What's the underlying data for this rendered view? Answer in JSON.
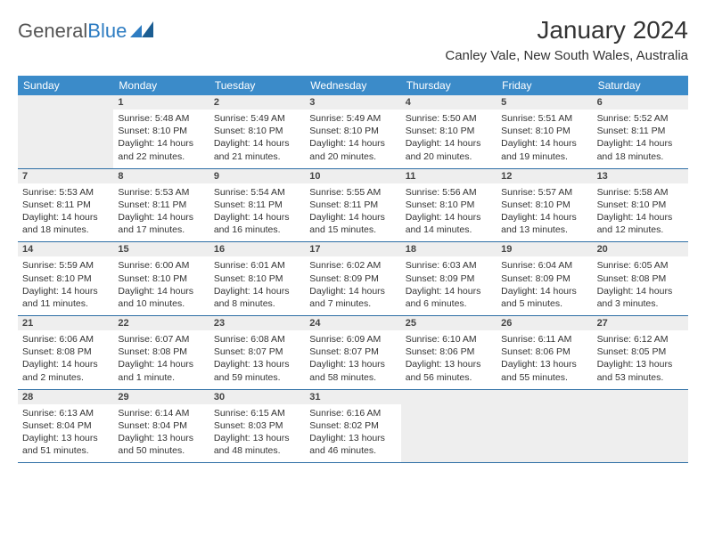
{
  "logo": {
    "part1": "General",
    "part2": "Blue"
  },
  "title": "January 2024",
  "location": "Canley Vale, New South Wales, Australia",
  "daynames": [
    "Sunday",
    "Monday",
    "Tuesday",
    "Wednesday",
    "Thursday",
    "Friday",
    "Saturday"
  ],
  "colors": {
    "header_bg": "#3b8bc9",
    "rule": "#2d6ea5",
    "daynum_bg": "#eeeeee"
  },
  "weeks": [
    [
      null,
      {
        "n": "1",
        "sunrise": "Sunrise: 5:48 AM",
        "sunset": "Sunset: 8:10 PM",
        "daylight": "Daylight: 14 hours and 22 minutes."
      },
      {
        "n": "2",
        "sunrise": "Sunrise: 5:49 AM",
        "sunset": "Sunset: 8:10 PM",
        "daylight": "Daylight: 14 hours and 21 minutes."
      },
      {
        "n": "3",
        "sunrise": "Sunrise: 5:49 AM",
        "sunset": "Sunset: 8:10 PM",
        "daylight": "Daylight: 14 hours and 20 minutes."
      },
      {
        "n": "4",
        "sunrise": "Sunrise: 5:50 AM",
        "sunset": "Sunset: 8:10 PM",
        "daylight": "Daylight: 14 hours and 20 minutes."
      },
      {
        "n": "5",
        "sunrise": "Sunrise: 5:51 AM",
        "sunset": "Sunset: 8:10 PM",
        "daylight": "Daylight: 14 hours and 19 minutes."
      },
      {
        "n": "6",
        "sunrise": "Sunrise: 5:52 AM",
        "sunset": "Sunset: 8:11 PM",
        "daylight": "Daylight: 14 hours and 18 minutes."
      }
    ],
    [
      {
        "n": "7",
        "sunrise": "Sunrise: 5:53 AM",
        "sunset": "Sunset: 8:11 PM",
        "daylight": "Daylight: 14 hours and 18 minutes."
      },
      {
        "n": "8",
        "sunrise": "Sunrise: 5:53 AM",
        "sunset": "Sunset: 8:11 PM",
        "daylight": "Daylight: 14 hours and 17 minutes."
      },
      {
        "n": "9",
        "sunrise": "Sunrise: 5:54 AM",
        "sunset": "Sunset: 8:11 PM",
        "daylight": "Daylight: 14 hours and 16 minutes."
      },
      {
        "n": "10",
        "sunrise": "Sunrise: 5:55 AM",
        "sunset": "Sunset: 8:11 PM",
        "daylight": "Daylight: 14 hours and 15 minutes."
      },
      {
        "n": "11",
        "sunrise": "Sunrise: 5:56 AM",
        "sunset": "Sunset: 8:10 PM",
        "daylight": "Daylight: 14 hours and 14 minutes."
      },
      {
        "n": "12",
        "sunrise": "Sunrise: 5:57 AM",
        "sunset": "Sunset: 8:10 PM",
        "daylight": "Daylight: 14 hours and 13 minutes."
      },
      {
        "n": "13",
        "sunrise": "Sunrise: 5:58 AM",
        "sunset": "Sunset: 8:10 PM",
        "daylight": "Daylight: 14 hours and 12 minutes."
      }
    ],
    [
      {
        "n": "14",
        "sunrise": "Sunrise: 5:59 AM",
        "sunset": "Sunset: 8:10 PM",
        "daylight": "Daylight: 14 hours and 11 minutes."
      },
      {
        "n": "15",
        "sunrise": "Sunrise: 6:00 AM",
        "sunset": "Sunset: 8:10 PM",
        "daylight": "Daylight: 14 hours and 10 minutes."
      },
      {
        "n": "16",
        "sunrise": "Sunrise: 6:01 AM",
        "sunset": "Sunset: 8:10 PM",
        "daylight": "Daylight: 14 hours and 8 minutes."
      },
      {
        "n": "17",
        "sunrise": "Sunrise: 6:02 AM",
        "sunset": "Sunset: 8:09 PM",
        "daylight": "Daylight: 14 hours and 7 minutes."
      },
      {
        "n": "18",
        "sunrise": "Sunrise: 6:03 AM",
        "sunset": "Sunset: 8:09 PM",
        "daylight": "Daylight: 14 hours and 6 minutes."
      },
      {
        "n": "19",
        "sunrise": "Sunrise: 6:04 AM",
        "sunset": "Sunset: 8:09 PM",
        "daylight": "Daylight: 14 hours and 5 minutes."
      },
      {
        "n": "20",
        "sunrise": "Sunrise: 6:05 AM",
        "sunset": "Sunset: 8:08 PM",
        "daylight": "Daylight: 14 hours and 3 minutes."
      }
    ],
    [
      {
        "n": "21",
        "sunrise": "Sunrise: 6:06 AM",
        "sunset": "Sunset: 8:08 PM",
        "daylight": "Daylight: 14 hours and 2 minutes."
      },
      {
        "n": "22",
        "sunrise": "Sunrise: 6:07 AM",
        "sunset": "Sunset: 8:08 PM",
        "daylight": "Daylight: 14 hours and 1 minute."
      },
      {
        "n": "23",
        "sunrise": "Sunrise: 6:08 AM",
        "sunset": "Sunset: 8:07 PM",
        "daylight": "Daylight: 13 hours and 59 minutes."
      },
      {
        "n": "24",
        "sunrise": "Sunrise: 6:09 AM",
        "sunset": "Sunset: 8:07 PM",
        "daylight": "Daylight: 13 hours and 58 minutes."
      },
      {
        "n": "25",
        "sunrise": "Sunrise: 6:10 AM",
        "sunset": "Sunset: 8:06 PM",
        "daylight": "Daylight: 13 hours and 56 minutes."
      },
      {
        "n": "26",
        "sunrise": "Sunrise: 6:11 AM",
        "sunset": "Sunset: 8:06 PM",
        "daylight": "Daylight: 13 hours and 55 minutes."
      },
      {
        "n": "27",
        "sunrise": "Sunrise: 6:12 AM",
        "sunset": "Sunset: 8:05 PM",
        "daylight": "Daylight: 13 hours and 53 minutes."
      }
    ],
    [
      {
        "n": "28",
        "sunrise": "Sunrise: 6:13 AM",
        "sunset": "Sunset: 8:04 PM",
        "daylight": "Daylight: 13 hours and 51 minutes."
      },
      {
        "n": "29",
        "sunrise": "Sunrise: 6:14 AM",
        "sunset": "Sunset: 8:04 PM",
        "daylight": "Daylight: 13 hours and 50 minutes."
      },
      {
        "n": "30",
        "sunrise": "Sunrise: 6:15 AM",
        "sunset": "Sunset: 8:03 PM",
        "daylight": "Daylight: 13 hours and 48 minutes."
      },
      {
        "n": "31",
        "sunrise": "Sunrise: 6:16 AM",
        "sunset": "Sunset: 8:02 PM",
        "daylight": "Daylight: 13 hours and 46 minutes."
      },
      null,
      null,
      null
    ]
  ]
}
